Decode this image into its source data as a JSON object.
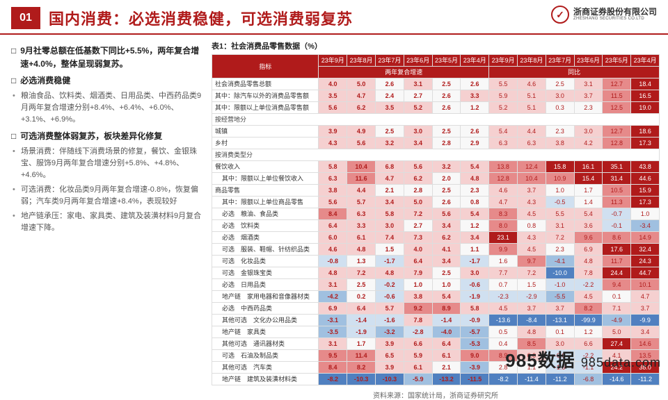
{
  "header": {
    "page_num": "01",
    "title": "国内消费：必选消费稳健，可选消费弱复苏",
    "company_cn": "浙商证券股份有限公司",
    "company_en": "ZHESHANG SECURITIES CO.LTD"
  },
  "left": {
    "sec1_title": "9月社零总额在低基数下同比+5.5%，两年复合增速+4.0%，整体呈现弱复苏。",
    "sec2_title": "必选消费稳健",
    "sec2_items": [
      "粮油食品、饮料类、烟酒类、日用品类、中西药品类9月两年复合增速分别+8.4%、+6.4%、+6.0%、+3.1%、+6.9%。"
    ],
    "sec3_title": "可选消费整体弱复苏，板块差异化修复",
    "sec3_items": [
      "场景消费：伴随线下消费场景的修复，餐饮、金银珠宝、服饰9月两年复合增速分别+5.8%、+4.8%、+4.6%。",
      "可选消费：化妆品类9月两年复合增速-0.8%，恢复偏弱；汽车类9月两年复合增速+8.4%，表现较好",
      "地产链承压：家电、家具类、建筑及装潢材料9月复合增速下降。"
    ]
  },
  "table": {
    "title": "表1：社会消费品零售数据（%）",
    "header1": [
      "指标",
      "23年9月",
      "23年8月",
      "23年7月",
      "23年6月",
      "23年5月",
      "23年4月",
      "23年9月",
      "23年8月",
      "23年7月",
      "23年6月",
      "23年5月",
      "23年4月"
    ],
    "group_a": "两年复合增速",
    "group_b": "同比",
    "rows": [
      {
        "label": "社会消费品零售总额",
        "a": [
          4.0,
          5.0,
          2.6,
          3.1,
          2.5,
          2.6
        ],
        "b": [
          5.5,
          4.6,
          2.5,
          3.1,
          12.7,
          18.4
        ]
      },
      {
        "label": "其中：除汽车以外的消费品零售额",
        "a": [
          3.5,
          4.7,
          2.4,
          2.7,
          2.6,
          3.3
        ],
        "b": [
          5.9,
          5.1,
          3.0,
          3.7,
          11.5,
          16.5
        ]
      },
      {
        "label": "其中：限额以上单位消费品零售额",
        "a": [
          5.6,
          6.2,
          3.5,
          5.2,
          2.6,
          1.2
        ],
        "b": [
          5.2,
          5.1,
          0.3,
          2.3,
          12.5,
          19.0
        ]
      },
      {
        "label": "按经营地分",
        "group": true
      },
      {
        "label": "城镇",
        "a": [
          3.9,
          4.9,
          2.5,
          3.0,
          2.5,
          2.6
        ],
        "b": [
          5.4,
          4.4,
          2.3,
          3.0,
          12.7,
          18.6
        ]
      },
      {
        "label": "乡村",
        "a": [
          4.3,
          5.6,
          3.2,
          3.4,
          2.8,
          2.9
        ],
        "b": [
          6.3,
          6.3,
          3.8,
          4.2,
          12.8,
          17.3
        ]
      },
      {
        "label": "按消费类型分",
        "group": true
      },
      {
        "label": "餐饮收入",
        "a": [
          5.8,
          10.4,
          6.8,
          5.6,
          3.2,
          5.4
        ],
        "b": [
          13.8,
          12.4,
          15.8,
          16.1,
          35.1,
          43.8
        ]
      },
      {
        "label": "其中：限额以上单位餐饮收入",
        "sub": true,
        "a": [
          6.3,
          11.6,
          4.7,
          6.2,
          2.0,
          4.8
        ],
        "b": [
          12.8,
          10.4,
          10.9,
          15.4,
          31.4,
          44.6
        ]
      },
      {
        "label": "商品零售",
        "a": [
          3.8,
          4.4,
          2.1,
          2.8,
          2.5,
          2.3
        ],
        "b": [
          4.6,
          3.7,
          1.0,
          1.7,
          10.5,
          15.9
        ]
      },
      {
        "label": "其中：限额以上单位商品零售",
        "sub": true,
        "a": [
          5.6,
          5.7,
          3.4,
          5.0,
          2.6,
          0.8
        ],
        "b": [
          4.7,
          4.3,
          -0.5,
          1.4,
          11.3,
          17.3
        ]
      },
      {
        "label": "必选　粮油、食品类",
        "sub": true,
        "a": [
          8.4,
          6.3,
          5.8,
          7.2,
          5.6,
          5.4
        ],
        "b": [
          8.3,
          4.5,
          5.5,
          5.4,
          -0.7,
          1.0
        ]
      },
      {
        "label": "必选　饮料类",
        "sub": true,
        "a": [
          6.4,
          3.3,
          3.0,
          2.7,
          3.4,
          1.2
        ],
        "b": [
          8.0,
          0.8,
          3.1,
          3.6,
          -0.1,
          -3.4
        ]
      },
      {
        "label": "必选　烟酒类",
        "sub": true,
        "a": [
          6.0,
          6.1,
          7.4,
          7.3,
          6.2,
          3.4
        ],
        "b": [
          23.1,
          4.3,
          7.2,
          9.6,
          8.6,
          14.9
        ]
      },
      {
        "label": "可选　服装、鞋帽、针纺织品类",
        "sub": true,
        "a": [
          4.6,
          4.8,
          1.5,
          4.0,
          4.1,
          1.1
        ],
        "b": [
          9.9,
          4.5,
          2.3,
          6.9,
          17.6,
          32.4
        ]
      },
      {
        "label": "可选　化妆品类",
        "sub": true,
        "a": [
          -0.8,
          1.3,
          -1.7,
          6.4,
          3.4,
          -1.7
        ],
        "b": [
          1.6,
          9.7,
          -4.1,
          4.8,
          11.7,
          24.3
        ]
      },
      {
        "label": "可选　金银珠宝类",
        "sub": true,
        "a": [
          4.8,
          7.2,
          4.8,
          7.9,
          2.5,
          3.0
        ],
        "b": [
          7.7,
          7.2,
          -10.0,
          7.8,
          24.4,
          44.7
        ]
      },
      {
        "label": "必选　日用品类",
        "sub": true,
        "a": [
          3.1,
          2.5,
          -0.2,
          1.0,
          1.0,
          -0.6
        ],
        "b": [
          0.7,
          1.5,
          -1.0,
          -2.2,
          9.4,
          10.1
        ]
      },
      {
        "label": "地产链　家用电器和音像器材类",
        "sub": true,
        "a": [
          -4.2,
          0.2,
          -0.6,
          3.8,
          5.4,
          -1.9
        ],
        "b": [
          -2.3,
          -2.9,
          -5.5,
          4.5,
          0.1,
          4.7
        ]
      },
      {
        "label": "必选　中西药品类",
        "sub": true,
        "a": [
          6.9,
          6.4,
          5.7,
          9.2,
          8.9,
          5.8
        ],
        "b": [
          4.5,
          3.7,
          3.7,
          8.2,
          7.1,
          3.7
        ]
      },
      {
        "label": "其他可选　文化办公用品类",
        "sub": true,
        "a": [
          -3.1,
          -1.4,
          -1.6,
          7.8,
          -1.4,
          -0.9
        ],
        "b": [
          -13.6,
          -8.4,
          -13.1,
          -99.9,
          -4.9,
          -9.9
        ]
      },
      {
        "label": "地产链　家具类",
        "sub": true,
        "a": [
          -3.5,
          -1.9,
          -3.2,
          -2.8,
          -4.0,
          -5.7
        ],
        "b": [
          0.5,
          4.8,
          0.1,
          1.2,
          5.0,
          3.4
        ]
      },
      {
        "label": "其他可选　通讯器材类",
        "sub": true,
        "a": [
          3.1,
          1.7,
          3.9,
          6.6,
          6.4,
          -5.3
        ],
        "b": [
          0.4,
          8.5,
          3.0,
          6.6,
          27.4,
          14.6
        ]
      },
      {
        "label": "可选　石油及制品类",
        "sub": true,
        "a": [
          9.5,
          11.4,
          6.5,
          5.9,
          6.1,
          9.0
        ],
        "b": [
          8.9,
          6.0,
          -0.6,
          -2.2,
          4.1,
          13.5
        ]
      },
      {
        "label": "其他可选　汽车类",
        "sub": true,
        "a": [
          8.4,
          8.2,
          3.9,
          6.1,
          2.1,
          -3.9
        ],
        "b": [
          2.8,
          1.1,
          -1.5,
          -1.1,
          24.2,
          38.0
        ]
      },
      {
        "label": "地产链　建筑及装潢材料类",
        "sub": true,
        "a": [
          -8.2,
          -10.3,
          -10.3,
          -5.9,
          -13.2,
          -11.5
        ],
        "b": [
          -8.2,
          -11.4,
          -11.2,
          -6.8,
          -14.6,
          -11.2
        ]
      }
    ],
    "colors": {
      "deep_neg": "#b01b1b",
      "neg": "#e68a8a",
      "light_neg": "#f5d0d0",
      "neutral": "#f8f8f8",
      "light_pos": "#d0e0f0",
      "pos": "#a0c0e0",
      "deep_pos": "#5080c0",
      "header": "#b01b1b"
    }
  },
  "source": "资料来源：国家统计局，浙商证券研究所",
  "watermark": {
    "main": "985数据",
    "sub": "985data.com"
  },
  "page_corner": "8"
}
